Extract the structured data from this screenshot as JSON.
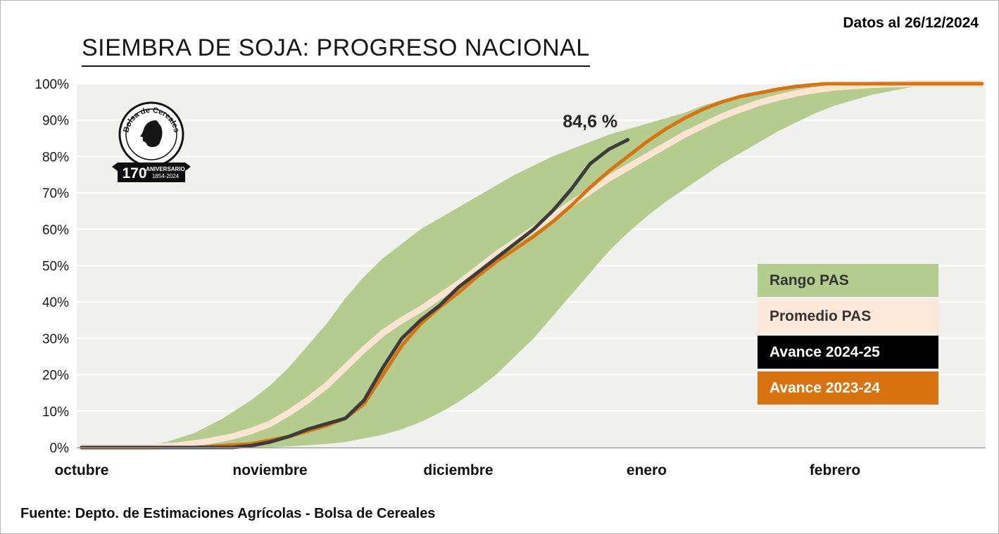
{
  "header": {
    "date_label": "Datos al 26/12/2024"
  },
  "footer": {
    "source": "Fuente: Depto. de Estimaciones Agrícolas - Bolsa de Cereales"
  },
  "logo": {
    "name": "Bolsa de Cereales",
    "anniversary_number": "170",
    "anniversary_label": "ANIVERSARIO",
    "anniversary_years": "1854-2024"
  },
  "chart_data": {
    "type": "line",
    "title": "SIEMBRA DE SOJA: PROGRESO NACIONAL",
    "xlabel": "",
    "ylabel": "",
    "x_unit": "months",
    "x_ticklabels": [
      "octubre",
      "noviembre",
      "diciembre",
      "enero",
      "febrero"
    ],
    "x_tick_positions": [
      0,
      1,
      2,
      3,
      4
    ],
    "x_range": [
      0,
      4.78
    ],
    "y_ticks": [
      0,
      10,
      20,
      30,
      40,
      50,
      60,
      70,
      80,
      90,
      100
    ],
    "y_ticklabel_suffix": "%",
    "ylim": [
      0,
      100
    ],
    "grid": "horizontal-white",
    "plot_background": "#f0f0ee",
    "axis_color": "#9b9b9b",
    "annotation": {
      "text": "84,6 %",
      "x": 2.7,
      "y": 88,
      "color": "#262626"
    },
    "band": {
      "name": "Rango PAS",
      "color": "#b5cc8f",
      "upper": [
        [
          0,
          0
        ],
        [
          0.3,
          0
        ],
        [
          0.45,
          1.5
        ],
        [
          0.6,
          4
        ],
        [
          0.75,
          8
        ],
        [
          0.9,
          13
        ],
        [
          1.0,
          17
        ],
        [
          1.1,
          22
        ],
        [
          1.2,
          28
        ],
        [
          1.3,
          34
        ],
        [
          1.4,
          41
        ],
        [
          1.5,
          47
        ],
        [
          1.6,
          52
        ],
        [
          1.7,
          56
        ],
        [
          1.8,
          60
        ],
        [
          1.9,
          63
        ],
        [
          2.0,
          66
        ],
        [
          2.1,
          69
        ],
        [
          2.2,
          72
        ],
        [
          2.3,
          75
        ],
        [
          2.4,
          77.5
        ],
        [
          2.5,
          80
        ],
        [
          2.6,
          82
        ],
        [
          2.7,
          84
        ],
        [
          2.8,
          86
        ],
        [
          2.9,
          87.5
        ],
        [
          3.0,
          89
        ],
        [
          3.1,
          90.5
        ],
        [
          3.2,
          92
        ],
        [
          3.3,
          94
        ],
        [
          3.4,
          95.5
        ],
        [
          3.5,
          97
        ],
        [
          3.6,
          98
        ],
        [
          3.7,
          99
        ],
        [
          3.8,
          99.6
        ],
        [
          3.9,
          100
        ],
        [
          4.78,
          100
        ]
      ],
      "lower": [
        [
          0,
          0
        ],
        [
          0.95,
          0
        ],
        [
          1.1,
          0.3
        ],
        [
          1.2,
          0.6
        ],
        [
          1.3,
          1
        ],
        [
          1.4,
          1.5
        ],
        [
          1.5,
          2.5
        ],
        [
          1.6,
          3.5
        ],
        [
          1.7,
          5
        ],
        [
          1.8,
          7
        ],
        [
          1.9,
          9.5
        ],
        [
          2.0,
          12.5
        ],
        [
          2.1,
          16
        ],
        [
          2.2,
          20
        ],
        [
          2.3,
          25
        ],
        [
          2.4,
          30
        ],
        [
          2.5,
          36
        ],
        [
          2.6,
          42
        ],
        [
          2.7,
          48
        ],
        [
          2.8,
          54
        ],
        [
          2.9,
          59
        ],
        [
          3.0,
          63.5
        ],
        [
          3.1,
          67.5
        ],
        [
          3.2,
          71
        ],
        [
          3.3,
          74.5
        ],
        [
          3.4,
          78
        ],
        [
          3.5,
          81
        ],
        [
          3.6,
          84
        ],
        [
          3.7,
          87
        ],
        [
          3.8,
          89.5
        ],
        [
          3.9,
          92
        ],
        [
          4.0,
          94
        ],
        [
          4.1,
          95.5
        ],
        [
          4.2,
          97
        ],
        [
          4.3,
          98
        ],
        [
          4.4,
          99
        ],
        [
          4.55,
          100
        ],
        [
          4.78,
          100
        ]
      ]
    },
    "series": [
      {
        "name": "Promedio PAS",
        "color": "#fbe5d2",
        "width": 9,
        "points": [
          [
            0,
            0
          ],
          [
            0.35,
            0
          ],
          [
            0.5,
            0.5
          ],
          [
            0.65,
            1.5
          ],
          [
            0.8,
            3
          ],
          [
            0.9,
            4.5
          ],
          [
            1.0,
            6.5
          ],
          [
            1.1,
            9.5
          ],
          [
            1.2,
            13
          ],
          [
            1.3,
            17
          ],
          [
            1.4,
            22
          ],
          [
            1.5,
            27
          ],
          [
            1.6,
            31.5
          ],
          [
            1.7,
            35
          ],
          [
            1.8,
            38
          ],
          [
            1.9,
            41.5
          ],
          [
            2.0,
            45
          ],
          [
            2.1,
            49
          ],
          [
            2.2,
            53
          ],
          [
            2.3,
            56.5
          ],
          [
            2.4,
            60
          ],
          [
            2.5,
            63.5
          ],
          [
            2.6,
            67
          ],
          [
            2.7,
            70.5
          ],
          [
            2.8,
            74
          ],
          [
            2.9,
            77
          ],
          [
            3.0,
            80
          ],
          [
            3.1,
            83
          ],
          [
            3.2,
            86
          ],
          [
            3.3,
            88.5
          ],
          [
            3.4,
            91
          ],
          [
            3.5,
            93
          ],
          [
            3.6,
            94.8
          ],
          [
            3.7,
            96.2
          ],
          [
            3.8,
            97.4
          ],
          [
            3.9,
            98.3
          ],
          [
            4.0,
            99
          ],
          [
            4.2,
            99.7
          ],
          [
            4.4,
            100
          ],
          [
            4.78,
            100
          ]
        ]
      },
      {
        "name": "Avance 2023-24",
        "color": "#d9730f",
        "width": 5,
        "points": [
          [
            0,
            0
          ],
          [
            0.6,
            0
          ],
          [
            0.75,
            0.5
          ],
          [
            0.9,
            1
          ],
          [
            1.0,
            2
          ],
          [
            1.1,
            3
          ],
          [
            1.2,
            4.5
          ],
          [
            1.3,
            6
          ],
          [
            1.4,
            8
          ],
          [
            1.5,
            12
          ],
          [
            1.6,
            20
          ],
          [
            1.7,
            28
          ],
          [
            1.8,
            34
          ],
          [
            1.9,
            38.5
          ],
          [
            2.0,
            42.5
          ],
          [
            2.1,
            47
          ],
          [
            2.2,
            51
          ],
          [
            2.3,
            54.5
          ],
          [
            2.4,
            58
          ],
          [
            2.5,
            62
          ],
          [
            2.6,
            66.5
          ],
          [
            2.7,
            71.5
          ],
          [
            2.8,
            76
          ],
          [
            2.9,
            80
          ],
          [
            3.0,
            84
          ],
          [
            3.1,
            87.5
          ],
          [
            3.2,
            90.5
          ],
          [
            3.3,
            93
          ],
          [
            3.4,
            95
          ],
          [
            3.5,
            96.5
          ],
          [
            3.6,
            97.5
          ],
          [
            3.7,
            98.5
          ],
          [
            3.8,
            99.3
          ],
          [
            3.95,
            100
          ],
          [
            4.78,
            100
          ]
        ]
      },
      {
        "name": "Avance 2024-25",
        "color": "#3c3c3c",
        "width": 5,
        "points": [
          [
            0,
            0
          ],
          [
            0.5,
            0
          ],
          [
            0.8,
            0
          ],
          [
            0.9,
            0.5
          ],
          [
            1.0,
            1.5
          ],
          [
            1.1,
            3
          ],
          [
            1.2,
            5
          ],
          [
            1.3,
            6.5
          ],
          [
            1.4,
            8
          ],
          [
            1.5,
            13
          ],
          [
            1.6,
            22
          ],
          [
            1.7,
            30
          ],
          [
            1.8,
            35
          ],
          [
            1.9,
            39
          ],
          [
            2.0,
            44
          ],
          [
            2.1,
            48
          ],
          [
            2.2,
            52
          ],
          [
            2.3,
            56
          ],
          [
            2.4,
            60
          ],
          [
            2.5,
            65
          ],
          [
            2.6,
            71
          ],
          [
            2.7,
            78
          ],
          [
            2.8,
            82
          ],
          [
            2.9,
            84.6
          ]
        ]
      }
    ],
    "legend": [
      {
        "label": "Rango PAS",
        "bg": "#b5cc8f",
        "fg": "#333333"
      },
      {
        "label": "Promedio PAS",
        "bg": "#fce8d8",
        "fg": "#333333"
      },
      {
        "label": "Avance 2024-25",
        "bg": "#000000",
        "fg": "#ffffff"
      },
      {
        "label": "Avance 2023-24",
        "bg": "#d9730f",
        "fg": "#ffffff"
      }
    ],
    "legend_position": "right-middle"
  }
}
